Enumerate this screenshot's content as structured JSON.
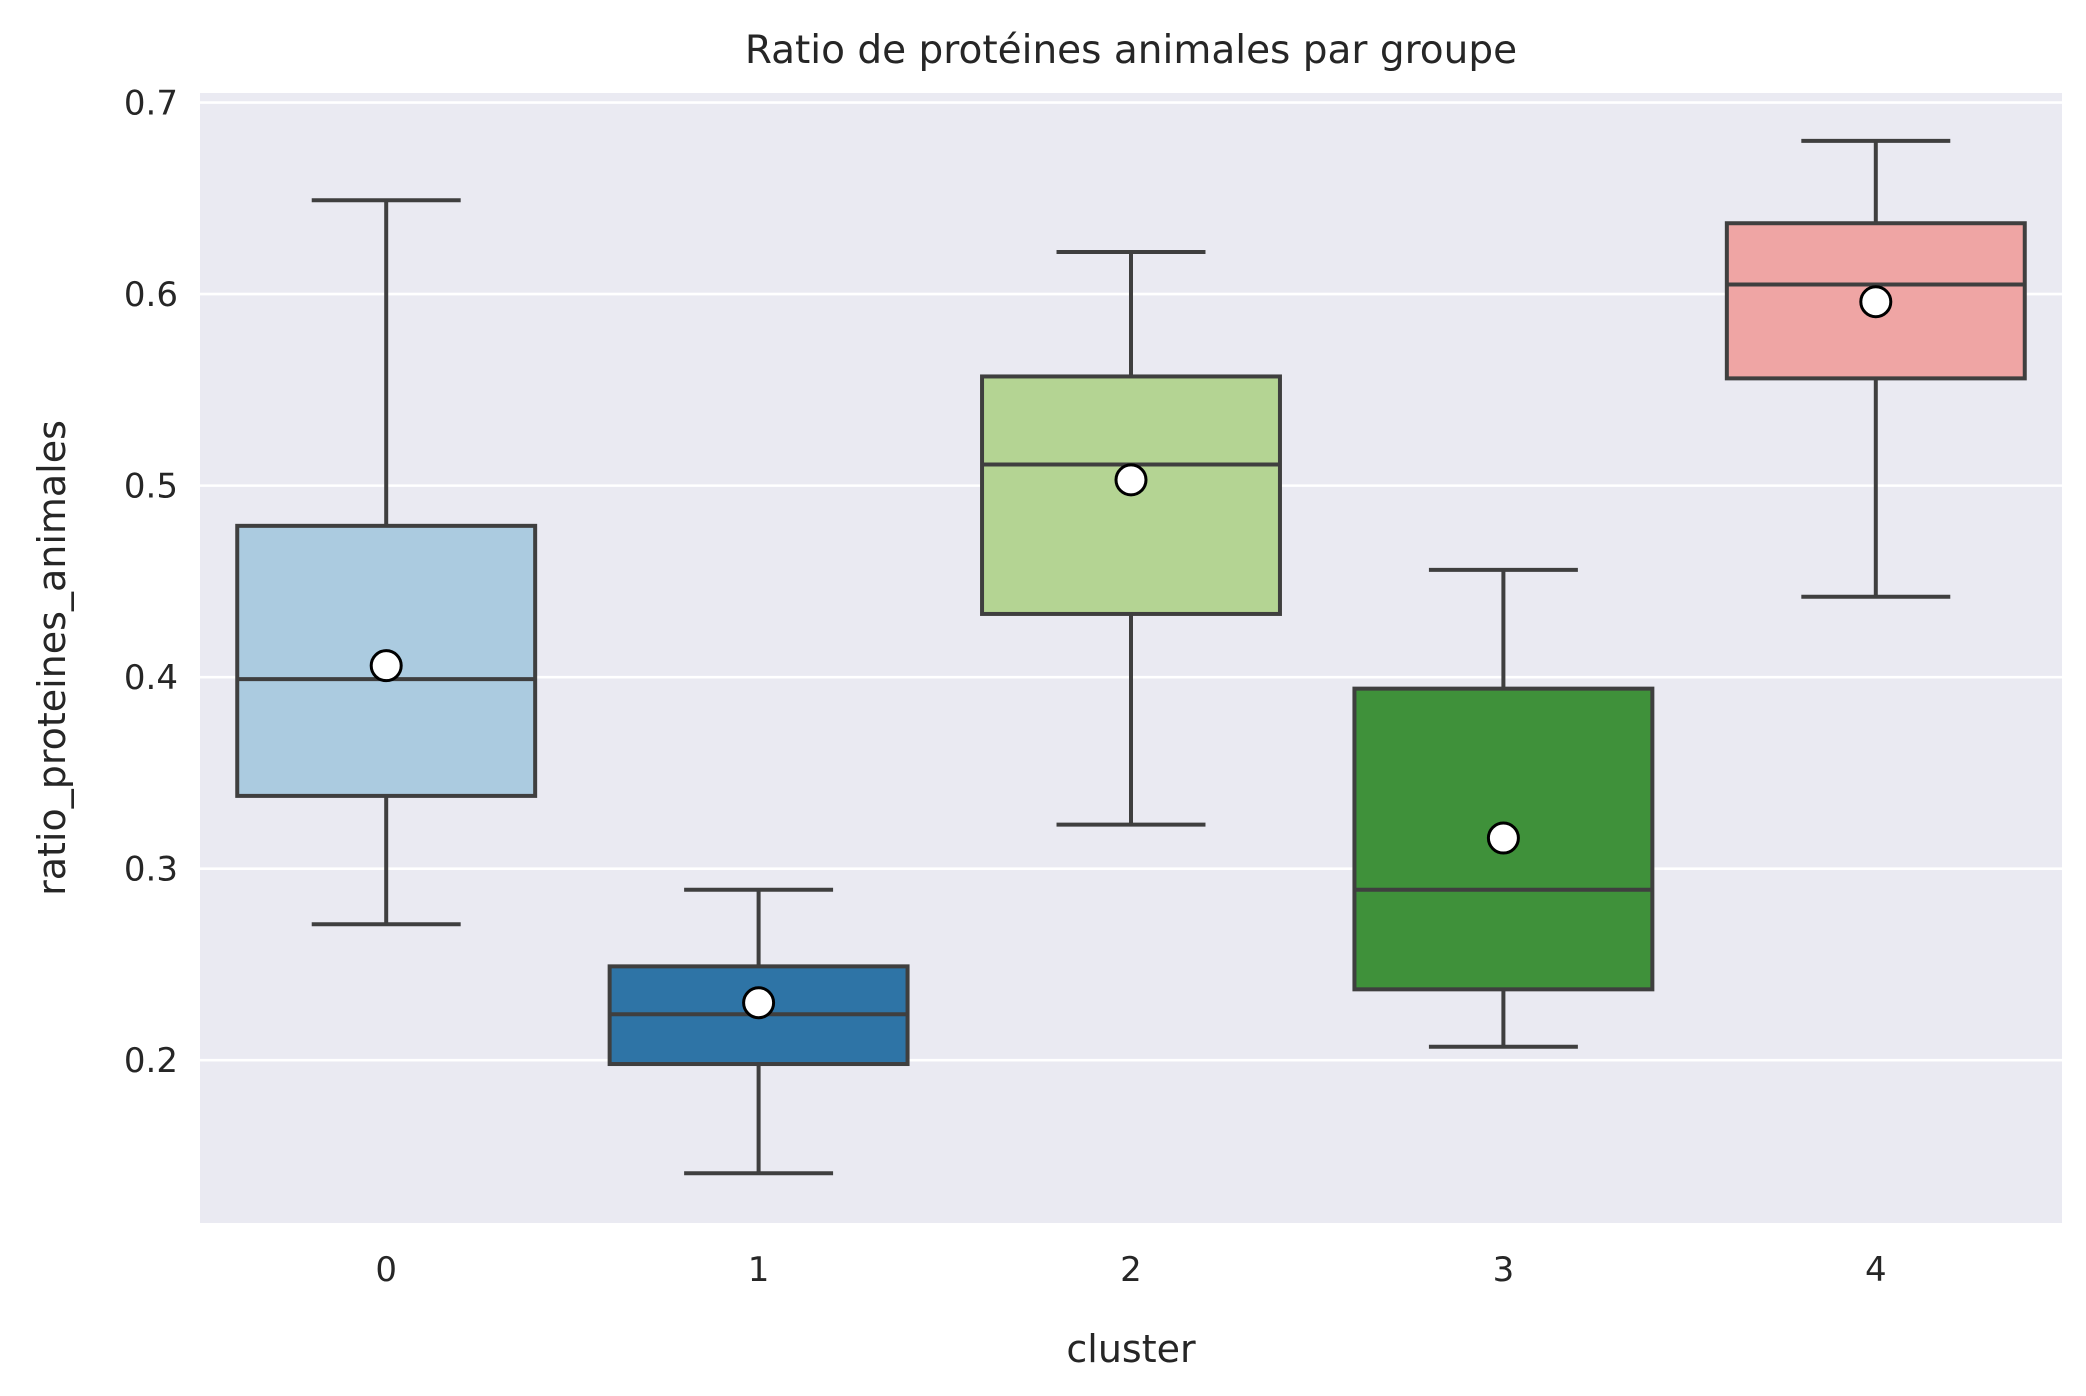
{
  "chart_data": {
    "type": "box",
    "title": "Ratio de protéines animales par groupe",
    "xlabel": "cluster",
    "ylabel": "ratio_proteines_animales",
    "ylim": [
      0.115,
      0.705
    ],
    "yticks": [
      "0.2",
      "0.3",
      "0.4",
      "0.5",
      "0.6",
      "0.7"
    ],
    "grid": true,
    "background": "#eaeaf2",
    "box_edge_color": "#3f3f3f",
    "mean_marker_color": "#ffffff",
    "categories": [
      "0",
      "1",
      "2",
      "3",
      "4"
    ],
    "boxes": [
      {
        "cluster": "0",
        "whisker_low": 0.271,
        "q1": 0.338,
        "median": 0.399,
        "q3": 0.479,
        "whisker_high": 0.649,
        "mean": 0.406,
        "color": "#abcbe0"
      },
      {
        "cluster": "1",
        "whisker_low": 0.141,
        "q1": 0.198,
        "median": 0.224,
        "q3": 0.249,
        "whisker_high": 0.289,
        "mean": 0.23,
        "color": "#2e74a6"
      },
      {
        "cluster": "2",
        "whisker_low": 0.323,
        "q1": 0.433,
        "median": 0.511,
        "q3": 0.557,
        "whisker_high": 0.622,
        "mean": 0.503,
        "color": "#b4d493"
      },
      {
        "cluster": "3",
        "whisker_low": 0.207,
        "q1": 0.237,
        "median": 0.289,
        "q3": 0.394,
        "whisker_high": 0.456,
        "mean": 0.316,
        "color": "#3f913a"
      },
      {
        "cluster": "4",
        "whisker_low": 0.442,
        "q1": 0.556,
        "median": 0.605,
        "q3": 0.637,
        "whisker_high": 0.68,
        "mean": 0.596,
        "color": "#efa5a4"
      }
    ]
  }
}
